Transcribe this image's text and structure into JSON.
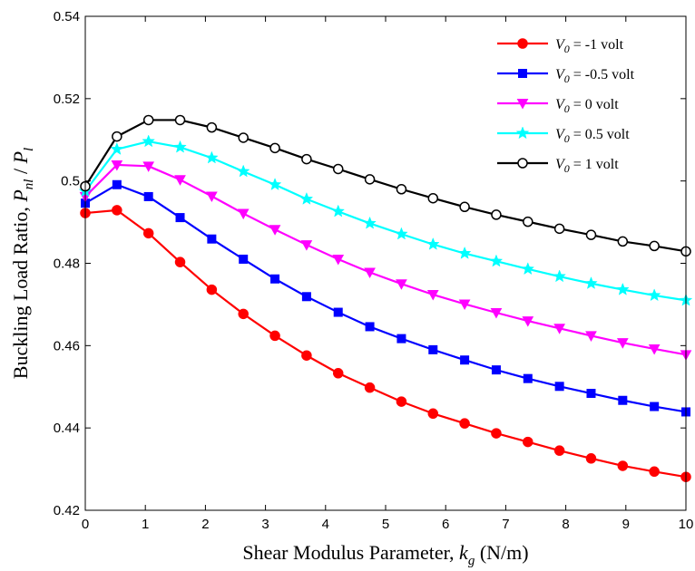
{
  "chart_data": {
    "type": "line",
    "x": [
      0,
      0.5263,
      1.0526,
      1.5789,
      2.1053,
      2.6316,
      3.1579,
      3.6842,
      4.2105,
      4.7368,
      5.2632,
      5.7895,
      6.3158,
      6.8421,
      7.3684,
      7.8947,
      8.4211,
      8.9474,
      9.4737,
      10
    ],
    "xlabel": {
      "main": "Shear Modulus Parameter, ",
      "var": "k",
      "sub": "g",
      "unit": " (N/m)"
    },
    "ylabel": {
      "main": "Buckling Load Ratio, ",
      "num": "P",
      "num_sub": "nl",
      "sep": " / ",
      "den": "P",
      "den_sub": "l"
    },
    "xlim": [
      0,
      10
    ],
    "ylim": [
      0.42,
      0.54
    ],
    "xticks": [
      "0",
      "1",
      "2",
      "3",
      "4",
      "5",
      "6",
      "7",
      "8",
      "9",
      "10"
    ],
    "yticks": [
      "0.42",
      "0.44",
      "0.46",
      "0.48",
      "0.5",
      "0.52",
      "0.54"
    ],
    "grid": false,
    "legend_position": "top-right",
    "series": [
      {
        "var": "V",
        "sub": "0",
        "rest": " = -1 volt",
        "color": "#ff0000",
        "marker": "circle-filled",
        "values": [
          0.4922,
          0.4929,
          0.4873,
          0.4803,
          0.4736,
          0.4677,
          0.4624,
          0.4576,
          0.4533,
          0.4498,
          0.4464,
          0.4435,
          0.4411,
          0.4387,
          0.4366,
          0.4345,
          0.4326,
          0.4308,
          0.4294,
          0.4281
        ]
      },
      {
        "var": "V",
        "sub": "0",
        "rest": " = -0.5 volt",
        "color": "#0000ff",
        "marker": "square",
        "values": [
          0.4946,
          0.4991,
          0.4962,
          0.4911,
          0.4859,
          0.481,
          0.4762,
          0.4719,
          0.4681,
          0.4646,
          0.4617,
          0.459,
          0.4565,
          0.4541,
          0.452,
          0.4501,
          0.4484,
          0.4467,
          0.4452,
          0.4439
        ]
      },
      {
        "var": "V",
        "sub": "0",
        "rest": " = 0 volt",
        "color": "#ff00ff",
        "marker": "triangle-down",
        "values": [
          0.4962,
          0.5039,
          0.5036,
          0.5003,
          0.4963,
          0.4921,
          0.4882,
          0.4845,
          0.481,
          0.4778,
          0.475,
          0.4724,
          0.4701,
          0.468,
          0.466,
          0.4642,
          0.4624,
          0.4607,
          0.4592,
          0.4578
        ]
      },
      {
        "var": "V",
        "sub": "0",
        "rest": " = 0.5 volt",
        "color": "#00ffff",
        "marker": "star",
        "values": [
          0.4975,
          0.5077,
          0.5096,
          0.5082,
          0.5056,
          0.5023,
          0.4991,
          0.4956,
          0.4926,
          0.4897,
          0.4871,
          0.4846,
          0.4824,
          0.4805,
          0.4786,
          0.4768,
          0.4751,
          0.4736,
          0.4722,
          0.471
        ]
      },
      {
        "var": "V",
        "sub": "0",
        "rest": " = 1 volt",
        "color": "#000000",
        "marker": "circle-open",
        "values": [
          0.4987,
          0.5108,
          0.5148,
          0.5148,
          0.513,
          0.5105,
          0.508,
          0.5053,
          0.5029,
          0.5004,
          0.498,
          0.4958,
          0.4937,
          0.4918,
          0.4901,
          0.4884,
          0.4869,
          0.4853,
          0.4842,
          0.4829
        ]
      }
    ]
  }
}
